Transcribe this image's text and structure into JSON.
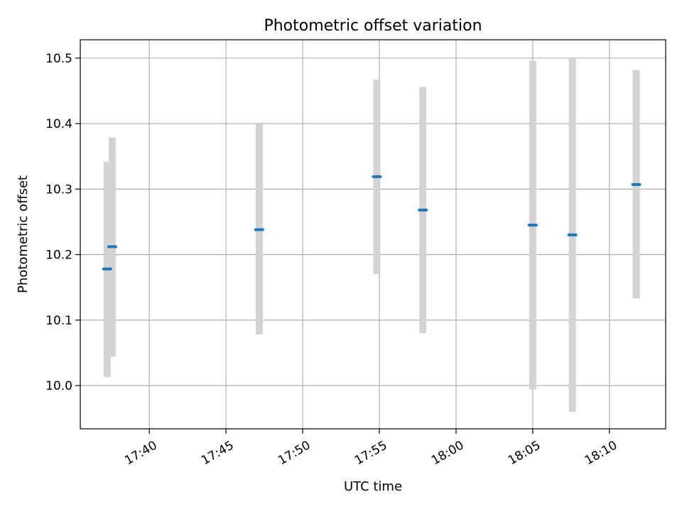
{
  "chart_data": {
    "type": "scatter",
    "title": "Photometric offset variation",
    "xlabel": "UTC time",
    "ylabel": "Photometric offset",
    "x_unit": "HH:MM UTC",
    "xlim": [
      "17:35:30",
      "18:13:40"
    ],
    "ylim": [
      9.934,
      10.528
    ],
    "x_ticks": [
      "17:40",
      "17:45",
      "17:50",
      "17:55",
      "18:00",
      "18:05",
      "18:10"
    ],
    "y_ticks": [
      10.0,
      10.1,
      10.2,
      10.3,
      10.4,
      10.5
    ],
    "y_tick_labels": [
      "10.0",
      "10.1",
      "10.2",
      "10.3",
      "10.4",
      "10.5"
    ],
    "grid": true,
    "marker_color": "#1f77b4",
    "errorbar_color": "#d3d3d3",
    "points": [
      {
        "x": "17:37:15",
        "y": 10.178,
        "yerr_low": 10.013,
        "yerr_high": 10.342
      },
      {
        "x": "17:37:35",
        "y": 10.212,
        "yerr_low": 10.044,
        "yerr_high": 10.379
      },
      {
        "x": "17:47:10",
        "y": 10.238,
        "yerr_low": 10.078,
        "yerr_high": 10.399
      },
      {
        "x": "17:54:50",
        "y": 10.319,
        "yerr_low": 10.17,
        "yerr_high": 10.467
      },
      {
        "x": "17:57:50",
        "y": 10.268,
        "yerr_low": 10.08,
        "yerr_high": 10.456
      },
      {
        "x": "18:05:00",
        "y": 10.245,
        "yerr_low": 9.994,
        "yerr_high": 10.496
      },
      {
        "x": "18:07:35",
        "y": 10.23,
        "yerr_low": 9.96,
        "yerr_high": 10.5
      },
      {
        "x": "18:11:45",
        "y": 10.307,
        "yerr_low": 10.133,
        "yerr_high": 10.482
      }
    ]
  }
}
